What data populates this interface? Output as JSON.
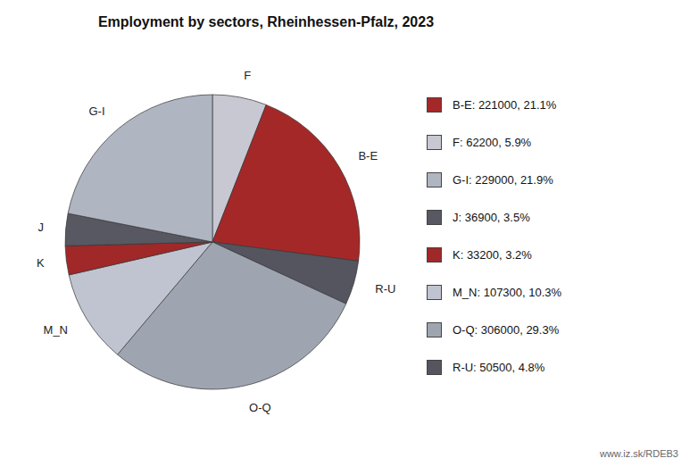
{
  "chart_data": {
    "type": "pie",
    "title": "Employment by sectors, Rheinhessen-Pfalz, 2023",
    "annotations": [
      "www.iz.sk/RDEB3"
    ],
    "categories": [
      "F",
      "B-E",
      "R-U",
      "O-Q",
      "M_N",
      "K",
      "J",
      "G-I"
    ],
    "values": [
      62200,
      221000,
      50500,
      306000,
      107300,
      33200,
      36900,
      229000
    ],
    "colors": [
      "#c8c8d2",
      "#a52828",
      "#555560",
      "#9fa5b0",
      "#c0c4d0",
      "#a02828",
      "#585862",
      "#b0b5c2"
    ],
    "legend": "right",
    "legend_entries": [
      {
        "label": "B-E: 221000, 21.1%",
        "color": "#a52828"
      },
      {
        "label": "F: 62200, 5.9%",
        "color": "#c8c8d2"
      },
      {
        "label": "G-I: 229000, 21.9%",
        "color": "#b0b5c2"
      },
      {
        "label": "J: 36900, 3.5%",
        "color": "#585862"
      },
      {
        "label": "K: 33200, 3.2%",
        "color": "#a02828"
      },
      {
        "label": "M_N: 107300, 10.3%",
        "color": "#c0c4d0"
      },
      {
        "label": "O-Q: 306000, 29.3%",
        "color": "#9fa5b0"
      },
      {
        "label": "R-U: 50500, 4.8%",
        "color": "#555560"
      }
    ]
  }
}
